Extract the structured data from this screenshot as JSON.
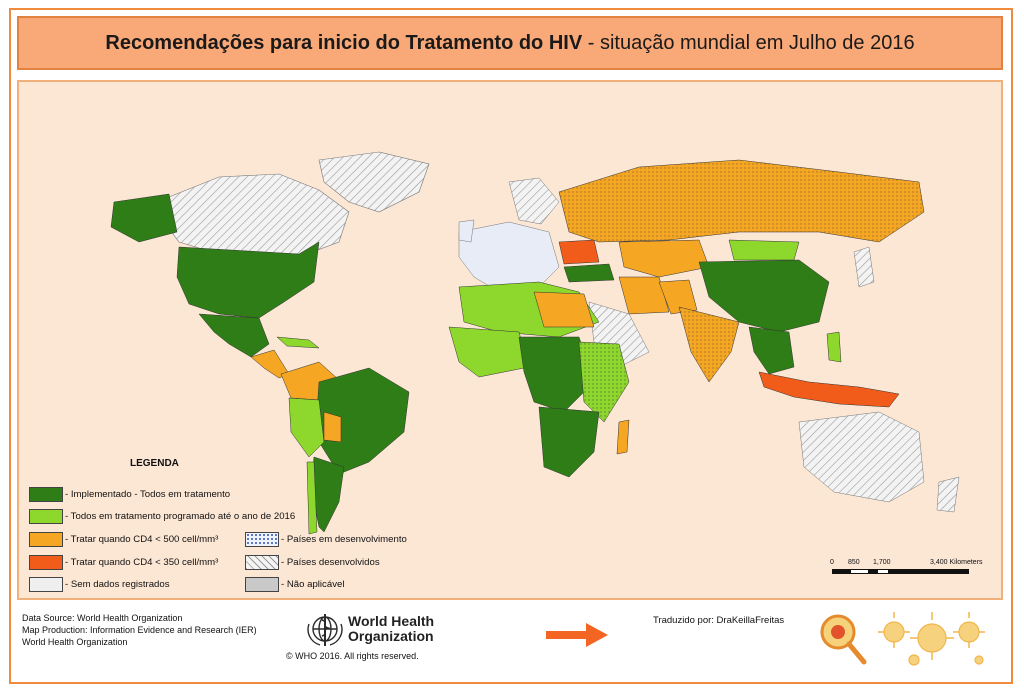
{
  "title": {
    "bold": "Recomendações para inicio do Tratamento do HIV",
    "rest": " - situação mundial em Julho de 2016"
  },
  "colors": {
    "implemented": "#2e7d17",
    "programmed": "#8ed72c",
    "cd4_500": "#f5a623",
    "cd4_350": "#f25c1b",
    "no_data": "#efefef",
    "not_applicable": "#c9c9c9",
    "developing_dots": "#4a64b8",
    "developed_hatch": "#9a9a9a",
    "ocean": "#fce6d4",
    "title_bg": "#f9a877",
    "arrow": "#f26522"
  },
  "legend": {
    "title": "LEGENDA",
    "items": [
      {
        "label": "- Implementado - Todos em tratamento",
        "color": "#2e7d17"
      },
      {
        "label": "- Todos em tratamento programado até o ano de 2016",
        "color": "#8ed72c"
      },
      {
        "label": "- Tratar quando CD4 < 500 cell/mm³",
        "color": "#f5a623"
      },
      {
        "label": "- Tratar quando CD4 < 350 cell/mm³",
        "color": "#f25c1b"
      },
      {
        "label": "- Sem dados registrados",
        "color": "#efefef"
      },
      {
        "label": "- Países em desenvolvimento",
        "pattern": "dots"
      },
      {
        "label": "- Países desenvolvidos",
        "pattern": "hatch"
      },
      {
        "label": "- Não aplicável",
        "color": "#c9c9c9"
      }
    ]
  },
  "scale": {
    "labels": [
      "0",
      "850",
      "1,700",
      "3,400 Kilometers"
    ]
  },
  "footer": {
    "source": "Data Source: World Health Organization",
    "production": "Map Production: Information Evidence and Research (IER)",
    "org": "World Health Organization",
    "who_name_line1": "World Health",
    "who_name_line2": "Organization",
    "copyright": "© WHO 2016. All rights reserved.",
    "translated": "Traduzido por: DraKeillaFreitas"
  }
}
